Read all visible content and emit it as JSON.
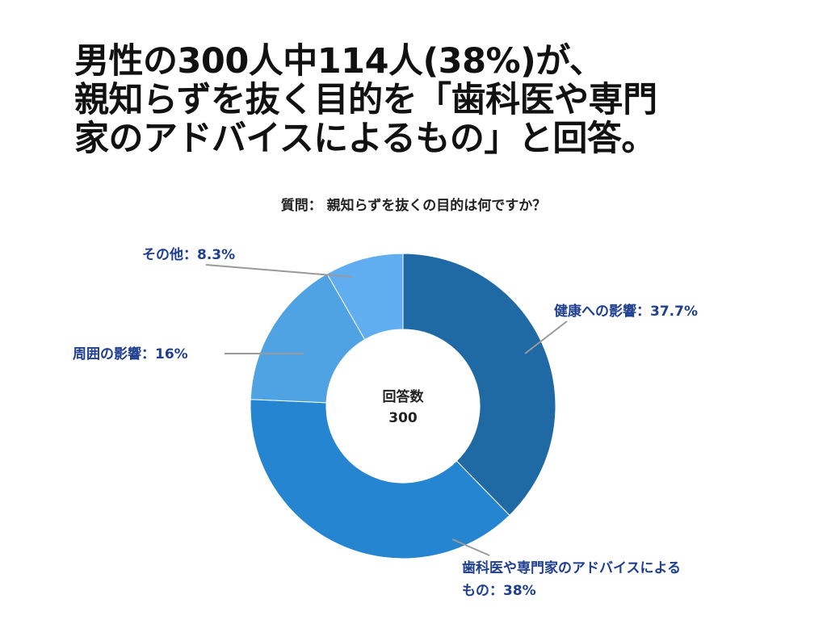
{
  "headline": {
    "lines": [
      "男性の300人中114人(38%)が、",
      "親知らずを抜く目的を「歯科医や専門",
      "家のアドバイスによるもの」と回答。"
    ]
  },
  "chart_data": {
    "type": "pie",
    "title": "質問： 親知らずを抜くの目的は何ですか？",
    "center_label": "回答数",
    "center_value": "300",
    "slices": [
      {
        "label": "健康への影響：37.7%",
        "value": 37.7,
        "color": "#1f6aa5"
      },
      {
        "label": "歯科医や専門家のアドバイスによるもの：38%",
        "label_lines": [
          "歯科医や専門家のアドバイスによる",
          "もの：38%"
        ],
        "value": 38,
        "color": "#2585d0"
      },
      {
        "label": "周囲の影響：16%",
        "value": 16,
        "color": "#4fa3e3"
      },
      {
        "label": "その他：8.3%",
        "value": 8.3,
        "color": "#60aef0"
      }
    ]
  }
}
